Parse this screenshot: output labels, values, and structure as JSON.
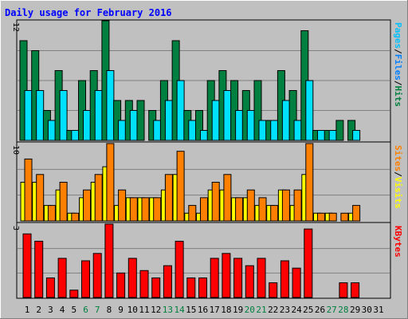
{
  "chart_data": {
    "type": "bar",
    "title": "Daily usage for February 2016",
    "x_categories": [
      "1",
      "2",
      "3",
      "4",
      "5",
      "6",
      "7",
      "8",
      "9",
      "10",
      "11",
      "12",
      "13",
      "14",
      "15",
      "16",
      "17",
      "18",
      "19",
      "20",
      "21",
      "22",
      "23",
      "24",
      "25",
      "26",
      "27",
      "28",
      "29",
      "30",
      "31"
    ],
    "weekend_days": [
      "6",
      "7",
      "13",
      "14",
      "20",
      "21",
      "27",
      "28"
    ],
    "panels": [
      {
        "id": "hits_files_pages",
        "ymax": 12,
        "ymax_label": "12",
        "axis_label": {
          "parts": [
            "Pages",
            "/",
            "Files",
            "/",
            "Hits"
          ],
          "colors": [
            "#00c0ff",
            "#000000",
            "#0080ff",
            "#000000",
            "#008040"
          ]
        },
        "series": [
          {
            "name": "Hits",
            "color": "#008040",
            "values": [
              10,
              9,
              3,
              7,
              1,
              6,
              7,
              12,
              4,
              4,
              4,
              3,
              6,
              10,
              3,
              3,
              6,
              7,
              6,
              5,
              6,
              2,
              7,
              5,
              11,
              1,
              1,
              2,
              2,
              0,
              0
            ]
          },
          {
            "name": "Files",
            "color": "#0080ff",
            "values": [
              0,
              0,
              0,
              0,
              0,
              0,
              0,
              0,
              0,
              0,
              0,
              0,
              0,
              0,
              0,
              0,
              0,
              0,
              0,
              0,
              0,
              0,
              0,
              0,
              0,
              0,
              0,
              0,
              0,
              0,
              0
            ]
          },
          {
            "name": "Pages",
            "color": "#00e0ff",
            "values": [
              5,
              5,
              2,
              5,
              1,
              3,
              5,
              7,
              2,
              3,
              0,
              2,
              4,
              6,
              2,
              1,
              4,
              5,
              3,
              3,
              2,
              2,
              4,
              2,
              6,
              1,
              1,
              0,
              1,
              0,
              0
            ]
          }
        ]
      },
      {
        "id": "visits_sites",
        "ymax": 10,
        "ymax_label": "10",
        "axis_label": {
          "parts": [
            "Sites",
            "/",
            "Visits"
          ],
          "colors": [
            "#ff8000",
            "#000000",
            "#ffff00"
          ]
        },
        "series": [
          {
            "name": "Visits",
            "color": "#ffff00",
            "values": [
              5,
              5,
              2,
              4,
              1,
              3,
              5,
              7,
              2,
              3,
              3,
              3,
              4,
              6,
              1,
              1,
              4,
              4,
              3,
              3,
              2,
              2,
              4,
              2,
              6,
              1,
              1,
              0,
              1,
              0,
              0
            ]
          },
          {
            "name": "Sites",
            "color": "#ff8000",
            "values": [
              8,
              6,
              2,
              5,
              1,
              4,
              6,
              10,
              4,
              3,
              3,
              3,
              6,
              9,
              2,
              3,
              5,
              6,
              3,
              4,
              3,
              2,
              4,
              4,
              10,
              1,
              1,
              1,
              2,
              0,
              0
            ]
          }
        ]
      },
      {
        "id": "kbytes",
        "ymax": 3,
        "ymax_label": "3",
        "axis_label": {
          "parts": [
            "KBytes"
          ],
          "colors": [
            "#ff0000"
          ]
        },
        "series": [
          {
            "name": "KBytes",
            "color": "#ff0000",
            "values": [
              2.6,
              2.3,
              0.8,
              1.6,
              0.3,
              1.5,
              1.8,
              3.0,
              1.0,
              1.6,
              1.1,
              0.8,
              1.3,
              2.3,
              0.8,
              0.8,
              1.6,
              1.8,
              1.6,
              1.3,
              1.6,
              0.6,
              1.5,
              1.2,
              2.8,
              0.0,
              0.0,
              0.6,
              0.6,
              0.0,
              0.0
            ]
          }
        ]
      }
    ]
  }
}
